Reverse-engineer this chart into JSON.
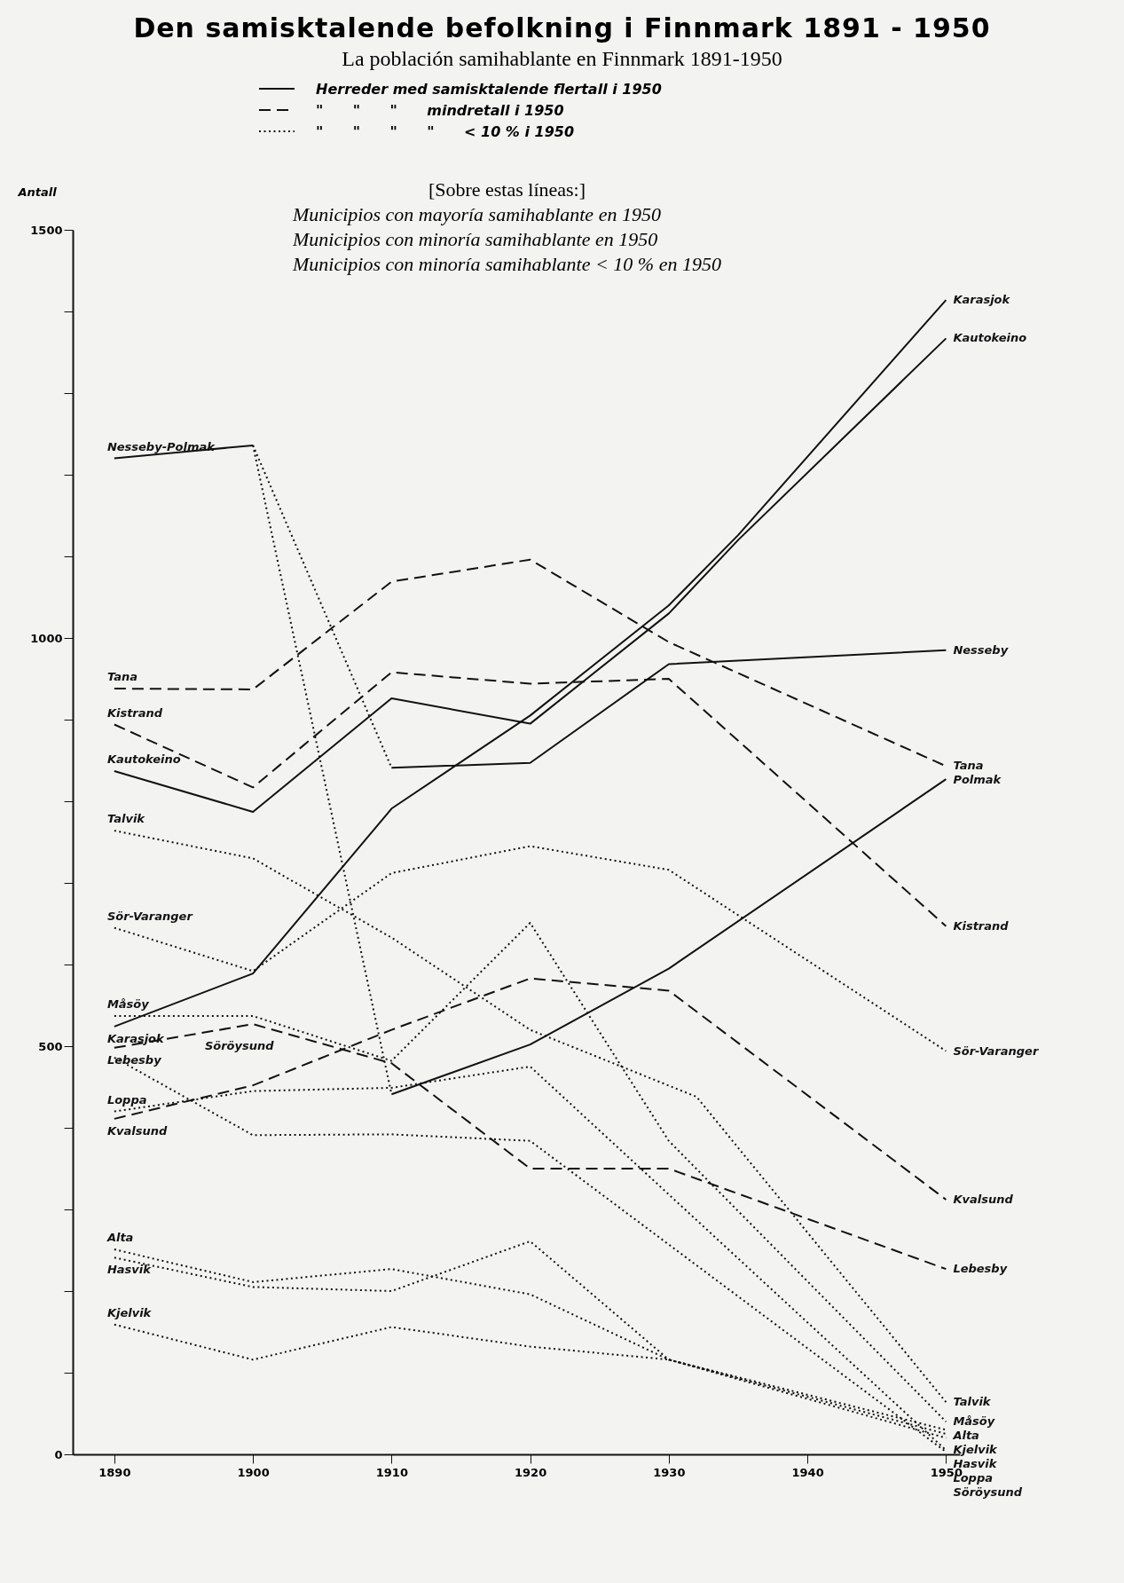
{
  "chart_data": {
    "type": "line",
    "title": "Den samisktalende befolkning i Finnmark 1891 - 1950",
    "subtitle": "La población samihablante en Finnmark 1891-1950",
    "ylabel": "Antall",
    "annotations": [
      "Herreder med samisktalende flertall i 1950",
      "\"      \"      \"      mindretall i 1950",
      "\"      \"      \"      \"      < 10 % i 1950",
      "[Sobre estas líneas:]",
      "Municipios con mayoría samihablante en 1950",
      "Municipios con minoría samihablante en 1950",
      "Municipios con minoría samihablante < 10 % en 1950"
    ],
    "xlim": [
      1887,
      1951
    ],
    "xticks": [
      1890,
      1900,
      1910,
      1920,
      1930,
      1940,
      1950
    ],
    "ylim": [
      0,
      1500
    ],
    "yticks": [
      0,
      {
        "value": 100,
        "label": null
      },
      {
        "value": 200,
        "label": null
      },
      {
        "value": 300,
        "label": null
      },
      {
        "value": 400,
        "label": null
      },
      500,
      {
        "value": 600,
        "label": null
      },
      {
        "value": 700,
        "label": null
      },
      {
        "value": 800,
        "label": null
      },
      {
        "value": 900,
        "label": null
      },
      1000,
      {
        "value": 1100,
        "label": null
      },
      {
        "value": 1200,
        "label": null
      },
      {
        "value": 1300,
        "label": null
      },
      {
        "value": 1400,
        "label": null
      },
      1500
    ],
    "grid": false,
    "series": [
      {
        "name": "Nesseby-Polmak",
        "color": "#111111",
        "line_style": "solid",
        "x": [
          1890,
          1900
        ],
        "values": [
          1220,
          1236
        ]
      },
      {
        "color": "#111111",
        "line_style": "dotted",
        "x": [
          1900,
          1910
        ],
        "values": [
          1236,
          841
        ]
      },
      {
        "color": "#111111",
        "line_style": "dotted",
        "x": [
          1900,
          1910
        ],
        "values": [
          1236,
          441
        ]
      },
      {
        "name": "Nesseby",
        "color": "#111111",
        "line_style": "solid",
        "x": [
          1910,
          1920,
          1930,
          1950
        ],
        "values": [
          841,
          847,
          968,
          985
        ]
      },
      {
        "name": "Polmak",
        "color": "#111111",
        "line_style": "solid",
        "x": [
          1910,
          1920,
          1930,
          1950
        ],
        "values": [
          441,
          502,
          595,
          827
        ]
      },
      {
        "name": "Karasjok",
        "color": "#111111",
        "line_style": "solid",
        "x": [
          1890,
          1900,
          1910,
          1920,
          1930,
          1935,
          1950
        ],
        "values": [
          524,
          589,
          791,
          905,
          1040,
          1126,
          1414
        ]
      },
      {
        "name": "Kautokeino",
        "color": "#111111",
        "line_style": "solid",
        "x": [
          1890,
          1900,
          1910,
          1920,
          1930,
          1935,
          1950
        ],
        "values": [
          837,
          787,
          926,
          895,
          1030,
          1120,
          1367
        ]
      },
      {
        "name": "Tana",
        "color": "#111111",
        "line_style": "dashed",
        "x": [
          1890,
          1900,
          1910,
          1920,
          1930,
          1950
        ],
        "values": [
          938,
          937,
          1069,
          1096,
          995,
          843
        ]
      },
      {
        "name": "Kistrand",
        "color": "#111111",
        "line_style": "dashed",
        "x": [
          1890,
          1900,
          1910,
          1920,
          1930,
          1950
        ],
        "values": [
          894,
          817,
          958,
          944,
          950,
          647
        ]
      },
      {
        "name": "Lebesby",
        "color": "#111111",
        "line_style": "dashed",
        "x": [
          1890,
          1900,
          1910,
          1920,
          1930,
          1950
        ],
        "values": [
          498,
          527,
          479,
          350,
          350,
          227
        ]
      },
      {
        "name": "Kvalsund",
        "color": "#111111",
        "line_style": "dashed",
        "x": [
          1890,
          1900,
          1910,
          1920,
          1930,
          1950
        ],
        "values": [
          411,
          452,
          520,
          583,
          568,
          312
        ]
      },
      {
        "name": "Talvik",
        "color": "#111111",
        "line_style": "dotted",
        "x": [
          1890,
          1900,
          1910,
          1920,
          1932,
          1950
        ],
        "values": [
          764,
          730,
          633,
          520,
          438,
          64
        ]
      },
      {
        "name": "Sör-Varanger",
        "color": "#111111",
        "line_style": "dotted",
        "x": [
          1890,
          1900,
          1910,
          1920,
          1930,
          1950
        ],
        "values": [
          645,
          592,
          712,
          745,
          716,
          494
        ]
      },
      {
        "name": "Måsöy",
        "color": "#111111",
        "line_style": "dotted",
        "x": [
          1890,
          1900,
          1910,
          1920,
          1930,
          1950
        ],
        "values": [
          537,
          537,
          482,
          651,
          384,
          40
        ]
      },
      {
        "name": "Loppa",
        "color": "#111111",
        "line_style": "dotted",
        "x": [
          1890,
          1900,
          1910,
          1920,
          1950
        ],
        "values": [
          420,
          445,
          449,
          475,
          5
        ]
      },
      {
        "name": "Söröysund",
        "color": "#111111",
        "line_style": "dotted",
        "x": [
          1890,
          1900,
          1910,
          1920,
          1950
        ],
        "values": [
          486,
          391,
          392,
          384,
          3
        ]
      },
      {
        "name": "Alta",
        "color": "#111111",
        "line_style": "dotted",
        "x": [
          1890,
          1900,
          1910,
          1920,
          1930,
          1950
        ],
        "values": [
          251,
          211,
          227,
          196,
          116,
          30
        ]
      },
      {
        "name": "Hasvik",
        "color": "#111111",
        "line_style": "dotted",
        "x": [
          1890,
          1900,
          1910,
          1920,
          1930,
          1950
        ],
        "values": [
          241,
          205,
          200,
          261,
          116,
          20
        ]
      },
      {
        "name": "Kjelvik",
        "color": "#111111",
        "line_style": "dotted",
        "x": [
          1890,
          1900,
          1910,
          1920,
          1930,
          1950
        ],
        "values": [
          159,
          116,
          156,
          132,
          116,
          25
        ]
      }
    ]
  }
}
